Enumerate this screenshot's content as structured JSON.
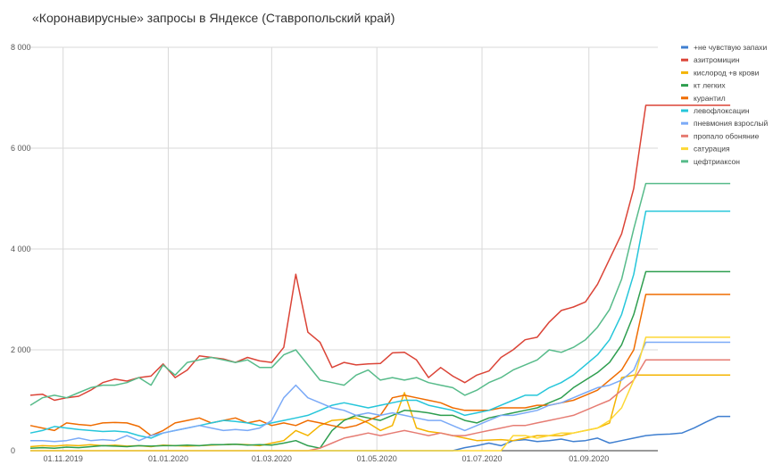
{
  "chart_data": {
    "type": "line",
    "title": "«Коронавирусные» запросы в Яндексе (Ставропольский край)",
    "xlabel": "",
    "ylabel": "",
    "x_start": "2019-10-13",
    "x_end": "2020-10-11",
    "x_step_days": 7,
    "ylim": [
      0,
      8000
    ],
    "y_ticks": [
      0,
      2000,
      4000,
      6000,
      8000
    ],
    "y_tick_labels": [
      "0",
      "2 000",
      "4 000",
      "6 000",
      "8 000"
    ],
    "x_ticks": [
      "2019-11-01",
      "2020-01-01",
      "2020-03-01",
      "2020-05-01",
      "2020-07-01",
      "2020-09-01"
    ],
    "x_tick_labels": [
      "01.11.2019",
      "01.01.2020",
      "01.03.2020",
      "01.05.2020",
      "01.07.2020",
      "01.09.2020"
    ],
    "grid": true,
    "legend_position": "right",
    "series": [
      {
        "name": "+не чувствую запахи",
        "color": "#3f7fd0",
        "values": [
          0,
          0,
          0,
          0,
          0,
          0,
          0,
          0,
          0,
          0,
          0,
          0,
          0,
          0,
          0,
          0,
          0,
          0,
          0,
          0,
          0,
          0,
          0,
          0,
          0,
          0,
          0,
          0,
          0,
          0,
          0,
          0,
          0,
          0,
          0,
          0,
          60,
          100,
          150,
          100,
          200,
          220,
          180,
          200,
          230,
          180,
          200,
          250,
          150,
          200,
          250,
          300,
          320,
          330,
          350,
          450,
          570,
          680,
          680
        ]
      },
      {
        "name": "азитромицин",
        "color": "#db4437",
        "values": [
          1100,
          1120,
          1000,
          1050,
          1080,
          1200,
          1350,
          1420,
          1380,
          1450,
          1480,
          1720,
          1450,
          1600,
          1880,
          1850,
          1820,
          1750,
          1850,
          1780,
          1750,
          2050,
          3500,
          2350,
          2150,
          1650,
          1750,
          1700,
          1720,
          1730,
          1940,
          1950,
          1800,
          1450,
          1650,
          1480,
          1350,
          1500,
          1580,
          1850,
          2000,
          2200,
          2250,
          2550,
          2780,
          2850,
          2950,
          3300,
          3800,
          4300,
          5200,
          6850,
          6850,
          6850,
          6850,
          6850,
          6850,
          6850,
          6850
        ]
      },
      {
        "name": "кислород +в крови",
        "color": "#f4b400",
        "values": [
          80,
          100,
          90,
          110,
          100,
          120,
          100,
          110,
          90,
          100,
          80,
          110,
          100,
          90,
          100,
          110,
          120,
          130,
          120,
          100,
          150,
          200,
          400,
          300,
          500,
          600,
          620,
          650,
          550,
          400,
          500,
          1150,
          450,
          380,
          350,
          300,
          250,
          200,
          210,
          220,
          200,
          250,
          300,
          300,
          300,
          350,
          400,
          450,
          550,
          1450,
          1500,
          1500,
          1500,
          1500,
          1500,
          1500,
          1500,
          1500,
          1500
        ]
      },
      {
        "name": "кт легких",
        "color": "#2e9e4f",
        "values": [
          50,
          60,
          50,
          70,
          60,
          80,
          100,
          90,
          80,
          100,
          90,
          100,
          100,
          110,
          100,
          120,
          120,
          130,
          110,
          120,
          110,
          150,
          200,
          100,
          50,
          400,
          600,
          700,
          650,
          600,
          700,
          800,
          780,
          750,
          700,
          700,
          600,
          550,
          650,
          700,
          750,
          800,
          850,
          950,
          1050,
          1250,
          1400,
          1550,
          1750,
          2100,
          2700,
          3550,
          3550,
          3550,
          3550,
          3550,
          3550,
          3550,
          3550
        ]
      },
      {
        "name": "курантил",
        "color": "#ef6c00",
        "values": [
          500,
          450,
          400,
          550,
          520,
          500,
          550,
          560,
          550,
          480,
          300,
          400,
          550,
          600,
          650,
          550,
          600,
          650,
          550,
          600,
          500,
          550,
          500,
          600,
          550,
          500,
          450,
          500,
          600,
          700,
          1050,
          1100,
          1050,
          1000,
          950,
          850,
          800,
          800,
          800,
          850,
          850,
          850,
          900,
          900,
          950,
          1000,
          1100,
          1200,
          1400,
          1600,
          2000,
          3100,
          3100,
          3100,
          3100,
          3100,
          3100,
          3100,
          3100
        ]
      },
      {
        "name": "левофлоксацин",
        "color": "#26c6da",
        "values": [
          350,
          400,
          480,
          450,
          420,
          400,
          380,
          390,
          370,
          300,
          250,
          350,
          400,
          450,
          500,
          550,
          600,
          580,
          550,
          500,
          550,
          600,
          650,
          700,
          800,
          900,
          950,
          900,
          850,
          900,
          950,
          1000,
          1000,
          900,
          850,
          800,
          700,
          750,
          800,
          900,
          1000,
          1100,
          1100,
          1250,
          1350,
          1500,
          1700,
          1900,
          2200,
          2700,
          3500,
          4750,
          4750,
          4750,
          4750,
          4750,
          4750,
          4750,
          4750
        ]
      },
      {
        "name": "пневмония взрослый",
        "color": "#7baaf7",
        "values": [
          200,
          200,
          180,
          200,
          250,
          200,
          220,
          200,
          300,
          200,
          300,
          350,
          400,
          450,
          500,
          450,
          400,
          420,
          400,
          450,
          600,
          1050,
          1300,
          1050,
          950,
          850,
          800,
          700,
          750,
          700,
          750,
          700,
          650,
          600,
          600,
          500,
          400,
          500,
          600,
          700,
          700,
          750,
          800,
          900,
          950,
          1050,
          1150,
          1250,
          1300,
          1400,
          1600,
          2150,
          2150,
          2150,
          2150,
          2150,
          2150,
          2150,
          2150
        ]
      },
      {
        "name": "пропало обоняние",
        "color": "#e67c73",
        "values": [
          0,
          0,
          0,
          0,
          0,
          0,
          0,
          0,
          0,
          0,
          0,
          0,
          0,
          0,
          0,
          0,
          0,
          0,
          0,
          0,
          0,
          0,
          0,
          0,
          50,
          150,
          250,
          300,
          350,
          300,
          350,
          400,
          350,
          300,
          350,
          300,
          300,
          350,
          400,
          450,
          500,
          500,
          550,
          600,
          650,
          700,
          800,
          900,
          1000,
          1200,
          1400,
          1800,
          1800,
          1800,
          1800,
          1800,
          1800,
          1800,
          1800
        ]
      },
      {
        "name": "сатурация",
        "color": "#fdd835",
        "values": [
          0,
          0,
          0,
          0,
          0,
          0,
          0,
          0,
          0,
          0,
          0,
          0,
          0,
          0,
          0,
          0,
          0,
          0,
          0,
          0,
          0,
          0,
          0,
          0,
          0,
          0,
          0,
          0,
          0,
          0,
          0,
          0,
          0,
          0,
          0,
          0,
          0,
          0,
          0,
          0,
          300,
          300,
          250,
          300,
          350,
          350,
          400,
          450,
          600,
          850,
          1400,
          2250,
          2250,
          2250,
          2250,
          2250,
          2250,
          2250,
          2250
        ]
      },
      {
        "name": "цефтриаксон",
        "color": "#57bb8a",
        "values": [
          900,
          1050,
          1100,
          1050,
          1150,
          1250,
          1300,
          1300,
          1350,
          1450,
          1300,
          1700,
          1500,
          1750,
          1800,
          1850,
          1800,
          1750,
          1800,
          1650,
          1650,
          1900,
          2000,
          1700,
          1400,
          1350,
          1300,
          1500,
          1600,
          1400,
          1450,
          1400,
          1450,
          1350,
          1300,
          1250,
          1100,
          1200,
          1350,
          1450,
          1600,
          1700,
          1800,
          2000,
          1950,
          2050,
          2200,
          2450,
          2800,
          3400,
          4400,
          5300,
          5300,
          5300,
          5300,
          5300,
          5300,
          5300,
          5300
        ]
      }
    ]
  }
}
